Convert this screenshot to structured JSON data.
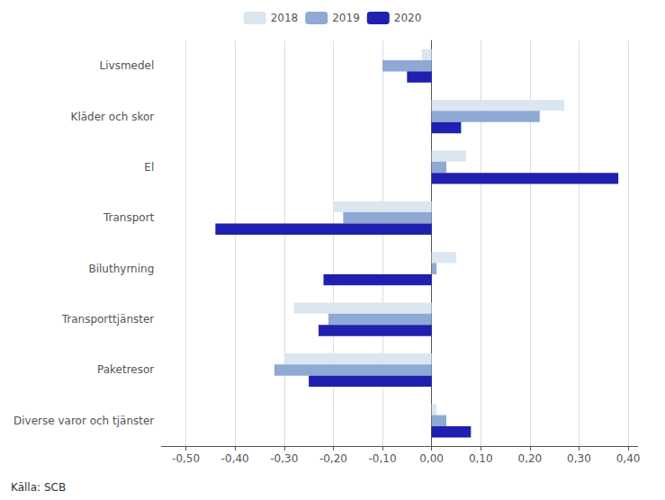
{
  "chart_data": {
    "type": "bar",
    "orientation": "horizontal",
    "categories": [
      "Livsmedel",
      "Kläder och skor",
      "El",
      "Transport",
      "Biluthyrning",
      "Transporttjänster",
      "Paketresor",
      "Diverse varor och tjänster"
    ],
    "series": [
      {
        "name": "2018",
        "color": "#dce6f1",
        "values": [
          -0.02,
          0.27,
          0.07,
          -0.2,
          0.05,
          -0.28,
          -0.3,
          0.01
        ]
      },
      {
        "name": "2019",
        "color": "#8ea9d3",
        "values": [
          -0.1,
          0.22,
          0.03,
          -0.18,
          0.01,
          -0.21,
          -0.32,
          0.03
        ]
      },
      {
        "name": "2020",
        "color": "#1f1fb0",
        "values": [
          -0.05,
          0.06,
          0.38,
          -0.44,
          -0.22,
          -0.23,
          -0.25,
          0.08
        ]
      }
    ],
    "xlim": [
      -0.55,
      0.42
    ],
    "xticks": [
      {
        "value": -0.5,
        "label": "-0,50"
      },
      {
        "value": -0.4,
        "label": "-0,40"
      },
      {
        "value": -0.3,
        "label": "-0,30"
      },
      {
        "value": -0.2,
        "label": "-0,20"
      },
      {
        "value": -0.1,
        "label": "-0,10"
      },
      {
        "value": 0.0,
        "label": "0,00"
      },
      {
        "value": 0.1,
        "label": "0,10"
      },
      {
        "value": 0.2,
        "label": "0,20"
      },
      {
        "value": 0.3,
        "label": "0,30"
      },
      {
        "value": 0.4,
        "label": "0,40"
      }
    ],
    "grid": true,
    "legend": "top",
    "annotations": [
      "Källa: SCB"
    ]
  }
}
